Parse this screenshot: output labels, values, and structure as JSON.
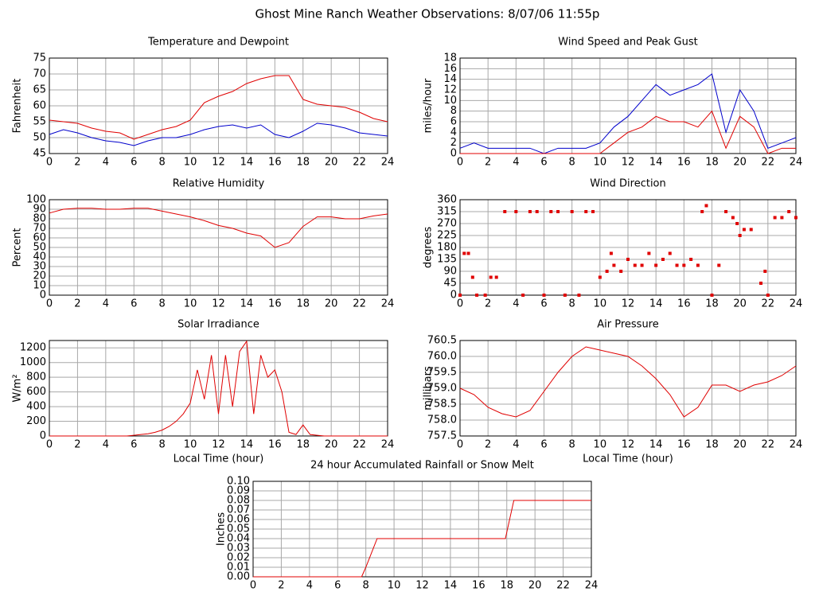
{
  "title": "Ghost Mine Ranch Weather Observations: 8/07/06 11:55p",
  "chart_data": [
    {
      "type": "line",
      "title": "Temperature and Dewpoint",
      "ylabel": "Fahrenheit",
      "x": [
        0,
        1,
        2,
        3,
        4,
        5,
        6,
        7,
        8,
        9,
        10,
        11,
        12,
        13,
        14,
        15,
        16,
        17,
        18,
        19,
        20,
        21,
        22,
        23,
        24
      ],
      "series": [
        {
          "color": "#e00000",
          "values": [
            55.5,
            55,
            54.5,
            53,
            52,
            51.5,
            49.5,
            51,
            52.5,
            53.5,
            55.5,
            61,
            63,
            64.5,
            67,
            68.5,
            69.5,
            69.5,
            62,
            60.5,
            60,
            59.5,
            58,
            56,
            55
          ]
        },
        {
          "color": "#0000cc",
          "values": [
            51,
            52.5,
            51.5,
            50,
            49,
            48.5,
            47.5,
            49,
            50,
            50,
            51,
            52.5,
            53.5,
            54,
            53,
            54,
            51,
            50,
            52,
            54.5,
            54,
            53,
            51.5,
            51,
            50.5
          ]
        }
      ],
      "xlim": [
        0,
        24
      ],
      "xticks": [
        0,
        2,
        4,
        6,
        8,
        10,
        12,
        14,
        16,
        18,
        20,
        22,
        24
      ],
      "ylim": [
        45,
        75
      ],
      "yticks": [
        45,
        50,
        55,
        60,
        65,
        70,
        75
      ],
      "grid": true
    },
    {
      "type": "line",
      "title": "Wind Speed and Peak Gust",
      "ylabel": "miles/hour",
      "x": [
        0,
        1,
        2,
        3,
        4,
        5,
        6,
        7,
        8,
        9,
        10,
        11,
        12,
        13,
        14,
        15,
        16,
        17,
        18,
        19,
        20,
        21,
        22,
        23,
        24
      ],
      "series": [
        {
          "color": "#0000cc",
          "values": [
            1,
            2,
            1,
            1,
            1,
            1,
            0,
            1,
            1,
            1,
            2,
            5,
            7,
            10,
            13,
            11,
            12,
            13,
            15,
            4,
            12,
            8,
            1,
            2,
            3
          ]
        },
        {
          "color": "#e00000",
          "values": [
            0,
            0,
            0,
            0,
            0,
            0,
            0,
            0,
            0,
            0,
            0,
            2,
            4,
            5,
            7,
            6,
            6,
            5,
            8,
            1,
            7,
            5,
            0,
            1,
            1
          ]
        }
      ],
      "xlim": [
        0,
        24
      ],
      "xticks": [
        0,
        2,
        4,
        6,
        8,
        10,
        12,
        14,
        16,
        18,
        20,
        22,
        24
      ],
      "ylim": [
        0,
        18
      ],
      "yticks": [
        0,
        2,
        4,
        6,
        8,
        10,
        12,
        14,
        16,
        18
      ],
      "grid": true
    },
    {
      "type": "line",
      "title": "Relative Humidity",
      "ylabel": "Percent",
      "x": [
        0,
        1,
        2,
        3,
        4,
        5,
        6,
        7,
        8,
        9,
        10,
        11,
        12,
        13,
        14,
        15,
        16,
        17,
        18,
        19,
        20,
        21,
        22,
        23,
        24
      ],
      "series": [
        {
          "color": "#e00000",
          "values": [
            86,
            90,
            91,
            91,
            90,
            90,
            91,
            91,
            88,
            85,
            82,
            78,
            73,
            70,
            65,
            62,
            50,
            55,
            72,
            82,
            82,
            80,
            80,
            83,
            85
          ]
        }
      ],
      "xlim": [
        0,
        24
      ],
      "xticks": [
        0,
        2,
        4,
        6,
        8,
        10,
        12,
        14,
        16,
        18,
        20,
        22,
        24
      ],
      "ylim": [
        0,
        100
      ],
      "yticks": [
        0,
        10,
        20,
        30,
        40,
        50,
        60,
        70,
        80,
        90,
        100
      ],
      "grid": true
    },
    {
      "type": "scatter",
      "title": "Wind Direction",
      "ylabel": "degrees",
      "x": [
        0,
        0.3,
        0.6,
        0.9,
        1.2,
        1.8,
        2.2,
        2.6,
        3.2,
        4,
        4.5,
        5,
        5.5,
        6,
        6.5,
        7,
        7.5,
        8,
        8.5,
        9,
        9.5,
        10,
        10.5,
        10.8,
        11,
        11.5,
        12,
        12.5,
        13,
        13.5,
        14,
        14.5,
        15,
        15.5,
        16,
        16.5,
        17,
        17.3,
        17.6,
        18,
        18.5,
        19,
        19.5,
        19.8,
        20,
        20.3,
        20.8,
        21.5,
        21.8,
        22,
        22.5,
        23,
        23.5,
        24
      ],
      "series": [
        {
          "color": "#e00000",
          "values": [
            0,
            157.5,
            157.5,
            67.5,
            0,
            0,
            67.5,
            67.5,
            315,
            315,
            0,
            315,
            315,
            0,
            315,
            315,
            0,
            315,
            0,
            315,
            315,
            67.5,
            90,
            157.5,
            112.5,
            90,
            135,
            112.5,
            112.5,
            157.5,
            112.5,
            135,
            157.5,
            112.5,
            112.5,
            135,
            112.5,
            315,
            337.5,
            0,
            112.5,
            315,
            292.5,
            270,
            225,
            247.5,
            247.5,
            45,
            90,
            0,
            292.5,
            292.5,
            315,
            292.5
          ]
        }
      ],
      "xlim": [
        0,
        24
      ],
      "xticks": [
        0,
        2,
        4,
        6,
        8,
        10,
        12,
        14,
        16,
        18,
        20,
        22,
        24
      ],
      "ylim": [
        0,
        360
      ],
      "yticks": [
        0,
        45,
        90,
        135,
        180,
        225,
        270,
        315,
        360
      ],
      "grid": true
    },
    {
      "type": "line",
      "title": "Solar Irradiance",
      "ylabel": "W/m²",
      "xlabel": "Local Time (hour)",
      "x": [
        0,
        0.5,
        1,
        1.5,
        2,
        2.5,
        3,
        3.5,
        4,
        4.5,
        5,
        5.5,
        6,
        6.5,
        7,
        7.5,
        8,
        8.5,
        9,
        9.5,
        10,
        10.5,
        11,
        11.5,
        12,
        12.5,
        13,
        13.5,
        14,
        14.5,
        15,
        15.5,
        16,
        16.5,
        17,
        17.5,
        18,
        18.5,
        19,
        19.5,
        20,
        20.5,
        21,
        21.5,
        22,
        22.5,
        23,
        23.5,
        24
      ],
      "series": [
        {
          "color": "#e00000",
          "values": [
            0,
            0,
            0,
            0,
            0,
            0,
            0,
            0,
            0,
            0,
            0,
            0,
            10,
            20,
            30,
            50,
            80,
            130,
            200,
            300,
            450,
            900,
            500,
            1100,
            300,
            1100,
            400,
            1150,
            1290,
            300,
            1100,
            800,
            900,
            600,
            50,
            20,
            150,
            20,
            10,
            0,
            0,
            0,
            0,
            0,
            0,
            0,
            0,
            0,
            0
          ]
        }
      ],
      "xlim": [
        0,
        24
      ],
      "xticks": [
        0,
        2,
        4,
        6,
        8,
        10,
        12,
        14,
        16,
        18,
        20,
        22,
        24
      ],
      "ylim": [
        0,
        1300
      ],
      "yticks": [
        0,
        200,
        400,
        600,
        800,
        1000,
        1200
      ],
      "grid": true
    },
    {
      "type": "line",
      "title": "Air Pressure",
      "ylabel": "millibars",
      "xlabel": "Local Time (hour)",
      "x": [
        0,
        1,
        2,
        3,
        4,
        5,
        6,
        7,
        8,
        9,
        10,
        11,
        12,
        13,
        14,
        15,
        16,
        17,
        18,
        19,
        20,
        21,
        22,
        23,
        24
      ],
      "series": [
        {
          "color": "#e00000",
          "values": [
            759.0,
            758.8,
            758.4,
            758.2,
            758.1,
            758.3,
            758.9,
            759.5,
            760.0,
            760.3,
            760.2,
            760.1,
            760.0,
            759.7,
            759.3,
            758.8,
            758.1,
            758.4,
            759.1,
            759.1,
            758.9,
            759.1,
            759.2,
            759.4,
            759.7
          ]
        }
      ],
      "xlim": [
        0,
        24
      ],
      "xticks": [
        0,
        2,
        4,
        6,
        8,
        10,
        12,
        14,
        16,
        18,
        20,
        22,
        24
      ],
      "ylim": [
        757.5,
        760.5
      ],
      "yticks": [
        757.5,
        {
          "value": 758,
          "label": "758.0"
        },
        758.5,
        {
          "value": 759,
          "label": "759.0"
        },
        759.5,
        {
          "value": 760,
          "label": "760.0"
        },
        760.5
      ],
      "grid": true
    },
    {
      "type": "line",
      "title": "24 hour Accumulated Rainfall or Snow Melt",
      "ylabel": "Inches",
      "x": [
        0,
        1,
        2,
        3,
        4,
        5,
        6,
        7,
        7.7,
        8,
        8.8,
        9,
        10,
        11,
        12,
        13,
        14,
        15,
        16,
        17,
        17.9,
        18.5,
        19,
        20,
        21,
        22,
        23,
        24
      ],
      "series": [
        {
          "color": "#e00000",
          "values": [
            0,
            0,
            0,
            0,
            0,
            0,
            0,
            0,
            0,
            0.01,
            0.04,
            0.04,
            0.04,
            0.04,
            0.04,
            0.04,
            0.04,
            0.04,
            0.04,
            0.04,
            0.04,
            0.08,
            0.08,
            0.08,
            0.08,
            0.08,
            0.08,
            0.08
          ]
        }
      ],
      "xlim": [
        0,
        24
      ],
      "xticks": [
        0,
        2,
        4,
        6,
        8,
        10,
        12,
        14,
        16,
        18,
        20,
        22,
        24
      ],
      "ylim": [
        0,
        0.1
      ],
      "yticks": [
        {
          "value": 0,
          "label": "0.00"
        },
        0.01,
        0.02,
        0.03,
        0.04,
        0.05,
        0.06,
        0.07,
        0.08,
        0.09,
        {
          "value": 0.1,
          "label": "0.10"
        }
      ],
      "grid": true
    }
  ]
}
